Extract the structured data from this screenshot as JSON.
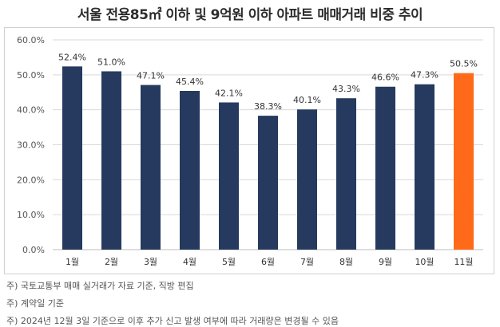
{
  "title": "서울 전용85㎡ 이하 및 9억원 이하 아파트 매매거래 비중 추이",
  "colors": {
    "bar": "#253a5e",
    "highlight": "#ff6a1a",
    "grid": "#d9d9d9"
  },
  "chart_data": {
    "type": "bar",
    "categories": [
      "1월",
      "2월",
      "3월",
      "4월",
      "5월",
      "6월",
      "7월",
      "8월",
      "9월",
      "10월",
      "11월"
    ],
    "values": [
      52.4,
      51.0,
      47.1,
      45.4,
      42.1,
      38.3,
      40.1,
      43.3,
      46.6,
      47.3,
      50.5
    ],
    "value_labels": [
      "52.4%",
      "51.0%",
      "47.1%",
      "45.4%",
      "42.1%",
      "38.3%",
      "40.1%",
      "43.3%",
      "46.6%",
      "47.3%",
      "50.5%"
    ],
    "highlight_index": 10,
    "ylim": [
      0,
      60
    ],
    "yticks": [
      "0.0%",
      "10.0%",
      "20.0%",
      "30.0%",
      "40.0%",
      "50.0%",
      "60.0%"
    ],
    "grid": true
  },
  "footnotes": [
    "주) 국토교통부 매매 실거래가 자료 기준, 직방 편집",
    "주) 계약일 기준",
    "주) 2024년 12월 3일 기준으로 이후 추가 신고 발생 여부에 따라 거래량은 변경될 수 있음"
  ]
}
